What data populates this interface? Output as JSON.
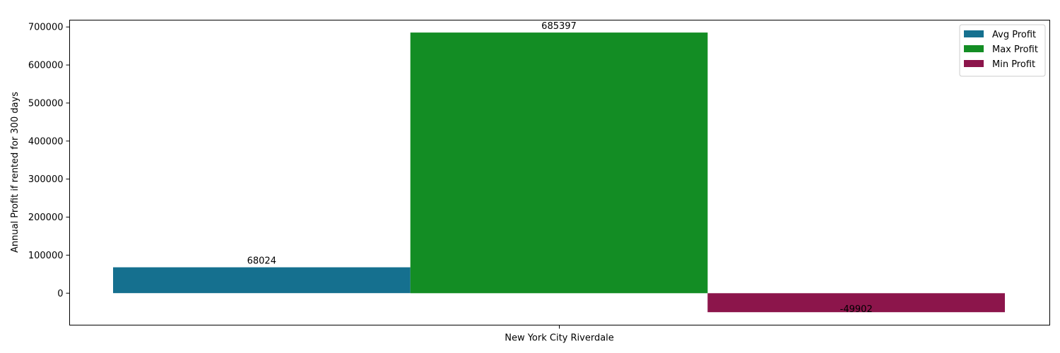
{
  "chart_data": {
    "type": "bar",
    "categories": [
      "New York City Riverdale"
    ],
    "series": [
      {
        "name": "Avg Profit",
        "values": [
          68024
        ],
        "color": "#15708f"
      },
      {
        "name": "Max Profit",
        "values": [
          685397
        ],
        "color": "#138d24"
      },
      {
        "name": "Min Profit",
        "values": [
          -49902
        ],
        "color": "#8c154b"
      }
    ],
    "data_labels": [
      "68024",
      "685397",
      "-49902"
    ],
    "title": "",
    "xlabel": "",
    "ylabel": "Annual Profit if rented for 300 days",
    "ylim": [
      -84000,
      718000
    ],
    "yticks": [
      0,
      100000,
      200000,
      300000,
      400000,
      500000,
      600000,
      700000
    ],
    "ytick_labels": [
      "0",
      "100000",
      "200000",
      "300000",
      "400000",
      "500000",
      "600000",
      "700000"
    ],
    "grid": false,
    "legend_position": "top-right"
  }
}
